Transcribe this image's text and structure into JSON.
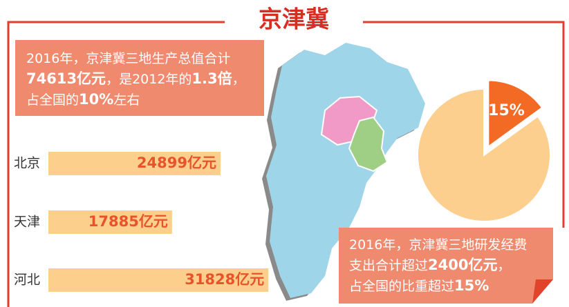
{
  "title": "京津冀",
  "notes": [
    {
      "lines": [
        [
          {
            "text": "2016年，京津冀三地生产总值合计",
            "bold": false
          }
        ],
        [
          {
            "text": "74613亿元",
            "bold": true
          },
          {
            "text": "，是2012年的",
            "bold": false
          },
          {
            "text": "1.3倍",
            "bold": true
          },
          {
            "text": "，",
            "bold": false
          }
        ],
        [
          {
            "text": "占全国的",
            "bold": false
          },
          {
            "text": "10%",
            "bold": true
          },
          {
            "text": "左右",
            "bold": false
          }
        ]
      ]
    },
    {
      "lines": [
        [
          {
            "text": "2016年，京津冀三地研发经费",
            "bold": false
          }
        ],
        [
          {
            "text": "支出合计超过",
            "bold": false
          },
          {
            "text": "2400亿元",
            "bold": true
          },
          {
            "text": "，",
            "bold": false
          }
        ],
        [
          {
            "text": "占全国的比重超过",
            "bold": false
          },
          {
            "text": "15%",
            "bold": true
          }
        ]
      ]
    }
  ],
  "chart_data": [
    {
      "type": "bar",
      "orientation": "horizontal",
      "categories": [
        "北京",
        "天津",
        "河北"
      ],
      "values": [
        24899,
        17885,
        31828
      ],
      "value_labels": [
        "24899亿元",
        "17885亿元",
        "31828亿元"
      ],
      "color": "#fccf8c",
      "label_color": "#e8532b"
    },
    {
      "type": "pie",
      "values": [
        15,
        85
      ],
      "value_labels": [
        "15%",
        null
      ],
      "colors": [
        "#f26a24",
        "#fccf8e"
      ]
    }
  ]
}
